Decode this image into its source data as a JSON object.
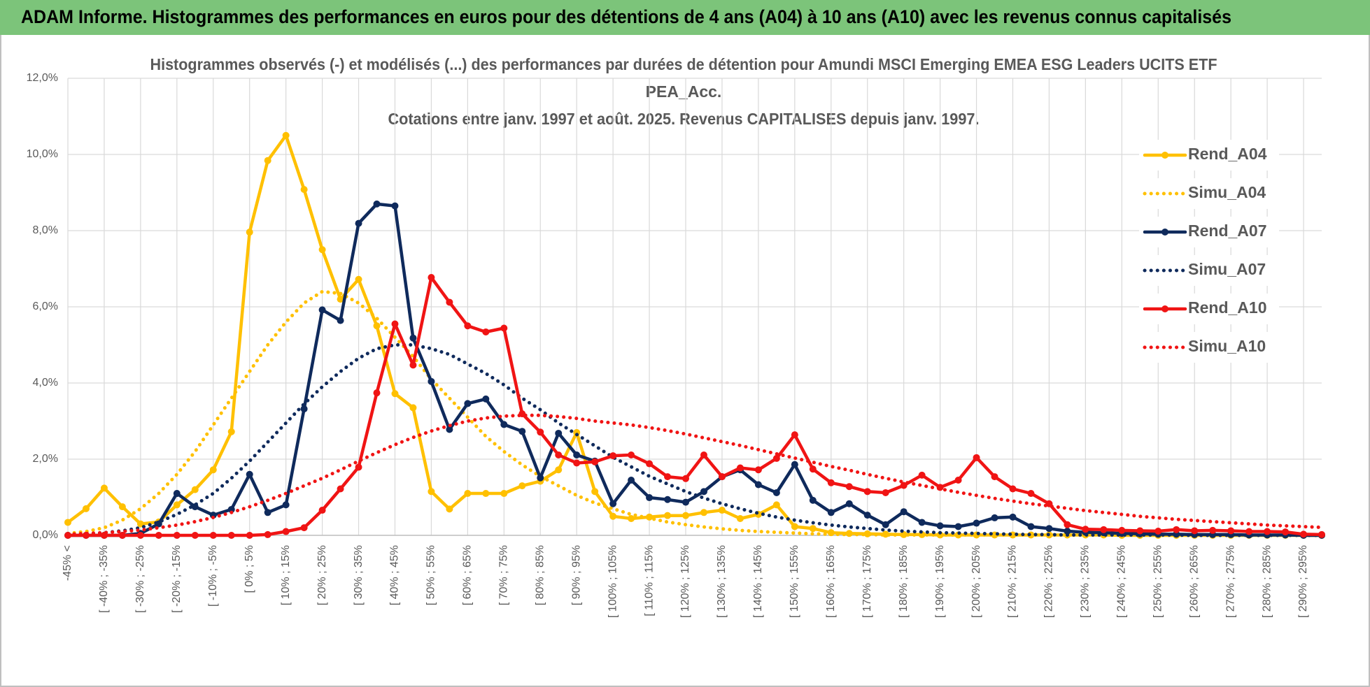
{
  "header": {
    "title": "ADAM Informe. Histogrammes des performances en euros pour des détentions de 4 ans (A04) à 10 ans (A10) avec les revenus connus capitalisés"
  },
  "chart_data": {
    "type": "line",
    "title": [
      "Histogrammes observés (-) et modélisés (...) des performances par durées de détention pour Amundi MSCI Emerging EMEA ESG Leaders UCITS ETF",
      "PEA_Acc.",
      "Cotations entre janv. 1997 et août. 2025. Revenus CAPITALISES depuis janv. 1997."
    ],
    "categories": [
      "-45% <",
      null,
      "[ -40% ; -35%",
      null,
      "[ -30% ; -25%",
      null,
      "[ -20% ; -15%",
      null,
      "[ -10% ; -5%",
      null,
      "[ 0% ; 5%",
      null,
      "[ 10% ; 15%",
      null,
      "[ 20% ; 25%",
      null,
      "[ 30% ; 35%",
      null,
      "[ 40% ; 45%",
      null,
      "[ 50% ; 55%",
      null,
      "[ 60% ; 65%",
      null,
      "[ 70% ; 75%",
      null,
      "[ 80% ; 85%",
      null,
      "[ 90% ; 95%",
      null,
      "[ 100% ; 105%",
      null,
      "[ 110% ; 115%",
      null,
      "[ 120% ; 125%",
      null,
      "[ 130% ; 135%",
      null,
      "[ 140% ; 145%",
      null,
      "[ 150% ; 155%",
      null,
      "[ 160% ; 165%",
      null,
      "[ 170% ; 175%",
      null,
      "[ 180% ; 185%",
      null,
      "[ 190% ; 195%",
      null,
      "[ 200% ; 205%",
      null,
      "[ 210% ; 215%",
      null,
      "[ 220% ; 225%",
      null,
      "[ 230% ; 235%",
      null,
      "[ 240% ; 245%",
      null,
      "[ 250% ; 255%",
      null,
      "[ 260% ; 265%",
      null,
      "[ 270% ; 275%",
      null,
      "[ 280% ; 285%",
      null,
      "[ 290% ; 295%",
      null
    ],
    "ylim": [
      0,
      12
    ],
    "yticks": [
      {
        "value": 0,
        "label": "0,0%"
      },
      {
        "value": 2,
        "label": "2,0%"
      },
      {
        "value": 4,
        "label": "4,0%"
      },
      {
        "value": 6,
        "label": "6,0%"
      },
      {
        "value": 8,
        "label": "8,0%"
      },
      {
        "value": 10,
        "label": "10,0%"
      },
      {
        "value": 12,
        "label": "12,0%"
      }
    ],
    "grid": true,
    "legend": "right",
    "series": [
      {
        "name": "Rend_A04",
        "color": "#ffc000",
        "style": "solid",
        "markers": true,
        "values": [
          0.34,
          0.7,
          1.24,
          0.75,
          0.3,
          0.35,
          0.8,
          1.2,
          1.72,
          2.72,
          7.96,
          9.84,
          10.5,
          9.08,
          7.5,
          6.2,
          6.72,
          5.5,
          3.72,
          3.35,
          1.15,
          0.69,
          1.1,
          1.1,
          1.1,
          1.3,
          1.42,
          1.72,
          2.7,
          1.15,
          0.5,
          0.44,
          0.48,
          0.52,
          0.52,
          0.6,
          0.66,
          0.44,
          0.55,
          0.8,
          0.23,
          0.18,
          0.07,
          0.05,
          0.04,
          0.03,
          0.02,
          0.02,
          0.01,
          0.01,
          0.01,
          0.01,
          0.01,
          0.01,
          0.01,
          0.01,
          0.01,
          0.01,
          0,
          0,
          0,
          0,
          0,
          0,
          0,
          0,
          0,
          0,
          0,
          0
        ]
      },
      {
        "name": "Simu_A04",
        "color": "#ffc000",
        "style": "dotted",
        "markers": false,
        "values": [
          0.05,
          0.1,
          0.2,
          0.4,
          0.7,
          1.1,
          1.6,
          2.2,
          2.9,
          3.6,
          4.3,
          5.0,
          5.6,
          6.1,
          6.4,
          6.35,
          6.1,
          5.7,
          5.2,
          4.7,
          4.1,
          3.6,
          3.1,
          2.6,
          2.2,
          1.85,
          1.55,
          1.3,
          1.05,
          0.85,
          0.7,
          0.55,
          0.45,
          0.35,
          0.28,
          0.22,
          0.17,
          0.13,
          0.1,
          0.08,
          0.06,
          0.04,
          0.03,
          0.02,
          0.02,
          0.01,
          0.01,
          0.01,
          0.01,
          0.01,
          0.01,
          0.01,
          0.01,
          0.01,
          0.01,
          0.01,
          0.01,
          0.01,
          0.01,
          0.01,
          0,
          0,
          0,
          0,
          0,
          0,
          0,
          0,
          0,
          0
        ]
      },
      {
        "name": "Rend_A07",
        "color": "#0f2a5c",
        "style": "solid",
        "markers": true,
        "values": [
          0,
          0,
          0,
          0,
          0.05,
          0.3,
          1.1,
          0.75,
          0.53,
          0.68,
          1.6,
          0.6,
          0.8,
          3.32,
          5.92,
          5.64,
          8.19,
          8.7,
          8.65,
          5.18,
          4.04,
          2.78,
          3.46,
          3.58,
          2.91,
          2.73,
          1.51,
          2.68,
          2.11,
          1.95,
          0.83,
          1.45,
          0.99,
          0.94,
          0.87,
          1.15,
          1.54,
          1.72,
          1.33,
          1.12,
          1.86,
          0.92,
          0.6,
          0.83,
          0.53,
          0.28,
          0.62,
          0.34,
          0.25,
          0.23,
          0.32,
          0.46,
          0.48,
          0.23,
          0.18,
          0.11,
          0.08,
          0.07,
          0.05,
          0.04,
          0.03,
          0.03,
          0.02,
          0.02,
          0.02,
          0.01,
          0.01,
          0.01,
          0,
          0
        ]
      },
      {
        "name": "Simu_A07",
        "color": "#0f2a5c",
        "style": "dotted",
        "markers": false,
        "values": [
          0.02,
          0.04,
          0.07,
          0.12,
          0.2,
          0.35,
          0.55,
          0.8,
          1.1,
          1.5,
          1.95,
          2.45,
          2.95,
          3.45,
          3.9,
          4.3,
          4.65,
          4.9,
          5.0,
          5.0,
          4.9,
          4.75,
          4.5,
          4.25,
          3.95,
          3.6,
          3.3,
          2.95,
          2.65,
          2.35,
          2.05,
          1.8,
          1.55,
          1.35,
          1.15,
          0.98,
          0.83,
          0.7,
          0.58,
          0.48,
          0.4,
          0.33,
          0.27,
          0.22,
          0.18,
          0.14,
          0.11,
          0.09,
          0.07,
          0.06,
          0.05,
          0.04,
          0.03,
          0.02,
          0.02,
          0.01,
          0.01,
          0.01,
          0.01,
          0.01,
          0.01,
          0.01,
          0,
          0,
          0,
          0,
          0,
          0,
          0,
          0
        ]
      },
      {
        "name": "Rend_A10",
        "color": "#f01414",
        "style": "solid",
        "markers": true,
        "values": [
          0,
          0,
          0,
          0,
          0,
          0,
          0,
          0,
          0,
          0,
          0,
          0.02,
          0.1,
          0.2,
          0.66,
          1.22,
          1.79,
          3.74,
          5.55,
          4.47,
          6.77,
          6.12,
          5.5,
          5.34,
          5.44,
          3.19,
          2.71,
          2.11,
          1.9,
          1.93,
          2.09,
          2.11,
          1.88,
          1.54,
          1.49,
          2.11,
          1.54,
          1.77,
          1.72,
          2.02,
          2.64,
          1.74,
          1.38,
          1.28,
          1.15,
          1.12,
          1.31,
          1.58,
          1.26,
          1.45,
          2.04,
          1.54,
          1.22,
          1.1,
          0.83,
          0.28,
          0.16,
          0.15,
          0.13,
          0.12,
          0.11,
          0.15,
          0.12,
          0.13,
          0.12,
          0.1,
          0.1,
          0.09,
          0.03,
          0.02
        ]
      },
      {
        "name": "Simu_A10",
        "color": "#f01414",
        "style": "dotted",
        "markers": false,
        "values": [
          0.03,
          0.05,
          0.07,
          0.1,
          0.14,
          0.2,
          0.27,
          0.36,
          0.47,
          0.6,
          0.75,
          0.92,
          1.1,
          1.3,
          1.5,
          1.72,
          1.95,
          2.17,
          2.38,
          2.57,
          2.74,
          2.88,
          3.0,
          3.08,
          3.13,
          3.15,
          3.15,
          3.12,
          3.07,
          3.0,
          2.95,
          2.9,
          2.83,
          2.75,
          2.66,
          2.56,
          2.46,
          2.36,
          2.25,
          2.14,
          2.03,
          1.92,
          1.81,
          1.71,
          1.6,
          1.5,
          1.4,
          1.31,
          1.22,
          1.13,
          1.05,
          0.97,
          0.9,
          0.83,
          0.77,
          0.71,
          0.65,
          0.6,
          0.55,
          0.5,
          0.46,
          0.42,
          0.39,
          0.36,
          0.33,
          0.3,
          0.27,
          0.25,
          0.23,
          0.21
        ]
      }
    ]
  }
}
